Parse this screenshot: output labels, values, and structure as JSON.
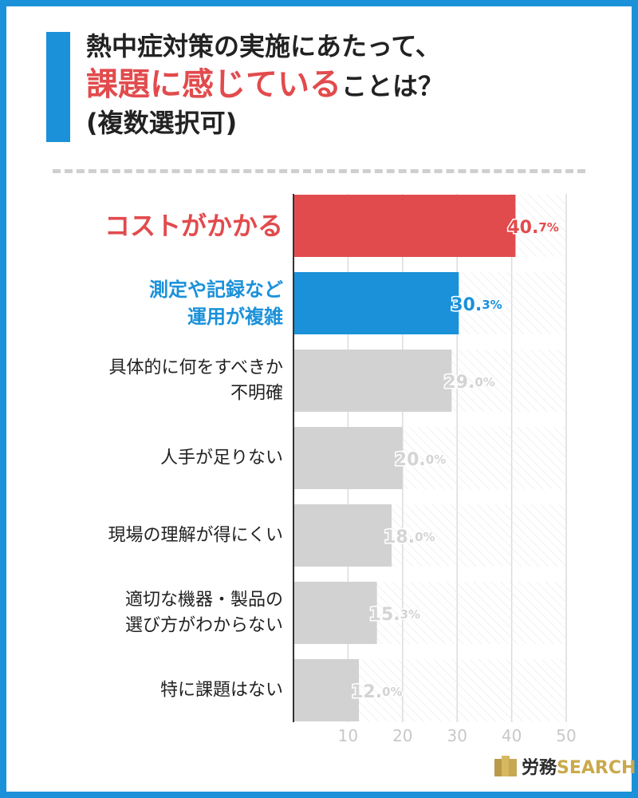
{
  "title": {
    "line1": "熱中症対策の実施にあたって、",
    "line2_highlight": "課題に感じている",
    "line2_rest": "ことは？",
    "line3": "(複数選択可)"
  },
  "colors": {
    "accent_blue": "#1a91d9",
    "accent_red": "#e24b4d",
    "bar_gray": "#d2d2d2",
    "text_dark": "#222222",
    "value_gray": "#d4d4d4",
    "hatch": "#e7e7e7",
    "grid": "#dcdcdc"
  },
  "chart_data": {
    "type": "bar",
    "orientation": "horizontal",
    "categories": [
      [
        "コストがかかる"
      ],
      [
        "測定や記録など",
        "運用が複雑"
      ],
      [
        "具体的に何をすべきか",
        "不明確"
      ],
      [
        "人手が足りない"
      ],
      [
        "現場の理解が得にくい"
      ],
      [
        "適切な機器・製品の",
        "選び方がわからない"
      ],
      [
        "特に課題はない"
      ]
    ],
    "values": [
      40.7,
      30.3,
      29.0,
      20.0,
      18.0,
      15.3,
      12.0
    ],
    "value_labels": [
      {
        "num": "40.",
        "dec": "7%"
      },
      {
        "num": "30.",
        "dec": "3%"
      },
      {
        "num": "29.",
        "dec": "0%"
      },
      {
        "num": "20.",
        "dec": "0%"
      },
      {
        "num": "18.",
        "dec": "0%"
      },
      {
        "num": "15.",
        "dec": "3%"
      },
      {
        "num": "12.",
        "dec": "0%"
      }
    ],
    "highlight": [
      "red",
      "blue",
      "none",
      "none",
      "none",
      "none",
      "none"
    ],
    "xlim": [
      0,
      50
    ],
    "ticks": [
      10,
      20,
      30,
      40,
      50
    ],
    "grid": true
  },
  "logo": {
    "jp": "労務",
    "en": "SEARCH"
  }
}
